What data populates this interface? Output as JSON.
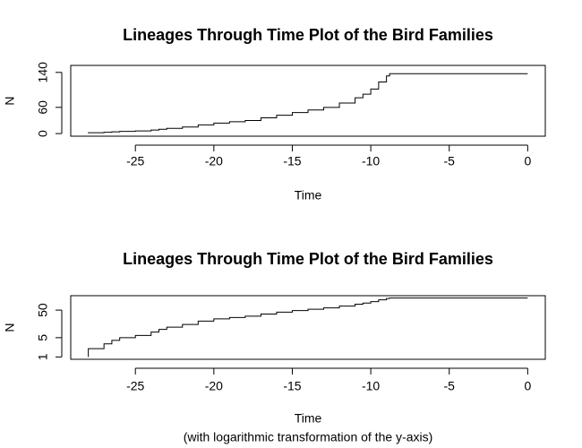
{
  "chart_data": [
    {
      "type": "line",
      "step": true,
      "log_y": false,
      "title": "Lineages Through Time Plot of the Bird Families",
      "xlabel": "Time",
      "ylabel": "N",
      "x": [
        -28,
        -28,
        -27,
        -26.5,
        -26,
        -25,
        -24,
        -23.5,
        -23,
        -22,
        -21,
        -20,
        -19,
        -18,
        -17,
        -16,
        -15,
        -14,
        -13,
        -12,
        -11,
        -10.5,
        -10,
        -9.5,
        -9,
        -8.8,
        0
      ],
      "series": [
        {
          "color": "#000000",
          "values": [
            1,
            2,
            3,
            4,
            5,
            6,
            8,
            10,
            12,
            15,
            20,
            24,
            27,
            30,
            36,
            42,
            48,
            54,
            60,
            70,
            82,
            90,
            102,
            118,
            132,
            137,
            137
          ]
        }
      ],
      "xlim": [
        -29.12,
        1.12
      ],
      "xticks": [
        -25,
        -20,
        -15,
        -10,
        -5,
        0
      ],
      "ylim": [
        -6,
        156
      ],
      "yticks": [
        0,
        60,
        140
      ]
    },
    {
      "type": "line",
      "step": true,
      "log_y": true,
      "title": "Lineages Through Time Plot of the Bird Families",
      "xlabel": "Time",
      "subtitle": "(with logarithmic transformation of the y-axis)",
      "ylabel": "N",
      "x": [
        -28,
        -28,
        -27,
        -26.5,
        -26,
        -25,
        -24,
        -23.5,
        -23,
        -22,
        -21,
        -20,
        -19,
        -18,
        -17,
        -16,
        -15,
        -14,
        -13,
        -12,
        -11,
        -10.5,
        -10,
        -9.5,
        -9,
        -8.8,
        0
      ],
      "series": [
        {
          "color": "#000000",
          "values": [
            1,
            2,
            3,
            4,
            5,
            6,
            8,
            10,
            12,
            15,
            20,
            24,
            27,
            30,
            36,
            42,
            48,
            54,
            60,
            70,
            82,
            90,
            102,
            118,
            132,
            137,
            137
          ]
        }
      ],
      "xlim": [
        -29.12,
        1.12
      ],
      "xticks": [
        -25,
        -20,
        -15,
        -10,
        -5,
        0
      ],
      "ylim": [
        0.822,
        166.7
      ],
      "yticks": [
        1,
        5,
        50
      ]
    }
  ]
}
